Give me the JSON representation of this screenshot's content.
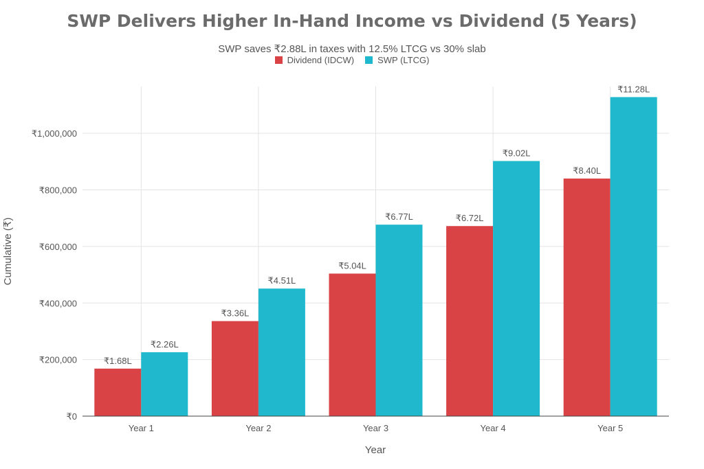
{
  "chart_data": {
    "type": "bar",
    "title": "SWP Delivers Higher In-Hand Income vs Dividend (5 Years)",
    "subtitle": "SWP saves ₹2.88L in taxes with 12.5% LTCG vs 30% slab",
    "xlabel": "Year",
    "ylabel": "Cumulative (₹)",
    "ylim": [
      0,
      1180000
    ],
    "yticks": [
      0,
      200000,
      400000,
      600000,
      800000,
      1000000
    ],
    "ytick_labels": [
      "₹0",
      "₹200,000",
      "₹400,000",
      "₹600,000",
      "₹800,000",
      "₹1,000,000"
    ],
    "categories": [
      "Year 1",
      "Year 2",
      "Year 3",
      "Year 4",
      "Year 5"
    ],
    "grid": true,
    "legend_position": "top-center",
    "series": [
      {
        "name": "Dividend (IDCW)",
        "color": "#d94345",
        "values": [
          168000,
          336000,
          504000,
          672000,
          840000
        ],
        "labels": [
          "₹1.68L",
          "₹3.36L",
          "₹5.04L",
          "₹6.72L",
          "₹8.40L"
        ]
      },
      {
        "name": "SWP (LTCG)",
        "color": "#1fb8cd",
        "values": [
          226000,
          451000,
          677000,
          902000,
          1128000
        ],
        "labels": [
          "₹2.26L",
          "₹4.51L",
          "₹6.77L",
          "₹9.02L",
          "₹11.28L"
        ]
      }
    ]
  }
}
